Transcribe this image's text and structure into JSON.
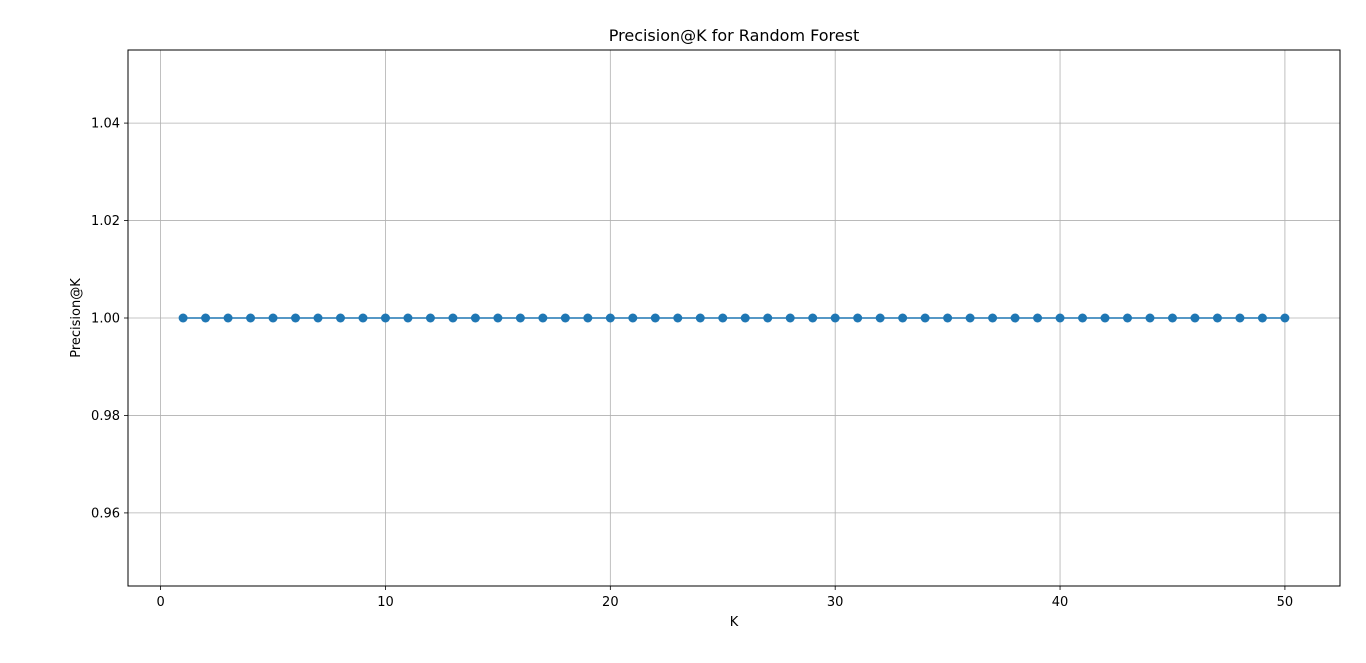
{
  "chart_data": {
    "type": "line",
    "title": "Precision@K for Random Forest",
    "xlabel": "K",
    "ylabel": "Precision@K",
    "xlim": [
      -1.45,
      52.45
    ],
    "ylim": [
      0.945,
      1.055
    ],
    "xticks": [
      0,
      10,
      20,
      30,
      40,
      50
    ],
    "yticks": [
      0.96,
      0.98,
      1.0,
      1.02,
      1.04
    ],
    "ytick_labels": [
      "0.96",
      "0.98",
      "1.00",
      "1.02",
      "1.04"
    ],
    "grid": true,
    "series": [
      {
        "color": "#1f77b4",
        "marker": "circle",
        "x": [
          1,
          2,
          3,
          4,
          5,
          6,
          7,
          8,
          9,
          10,
          11,
          12,
          13,
          14,
          15,
          16,
          17,
          18,
          19,
          20,
          21,
          22,
          23,
          24,
          25,
          26,
          27,
          28,
          29,
          30,
          31,
          32,
          33,
          34,
          35,
          36,
          37,
          38,
          39,
          40,
          41,
          42,
          43,
          44,
          45,
          46,
          47,
          48,
          49,
          50
        ],
        "y": [
          1,
          1,
          1,
          1,
          1,
          1,
          1,
          1,
          1,
          1,
          1,
          1,
          1,
          1,
          1,
          1,
          1,
          1,
          1,
          1,
          1,
          1,
          1,
          1,
          1,
          1,
          1,
          1,
          1,
          1,
          1,
          1,
          1,
          1,
          1,
          1,
          1,
          1,
          1,
          1,
          1,
          1,
          1,
          1,
          1,
          1,
          1,
          1,
          1,
          1
        ]
      }
    ]
  }
}
